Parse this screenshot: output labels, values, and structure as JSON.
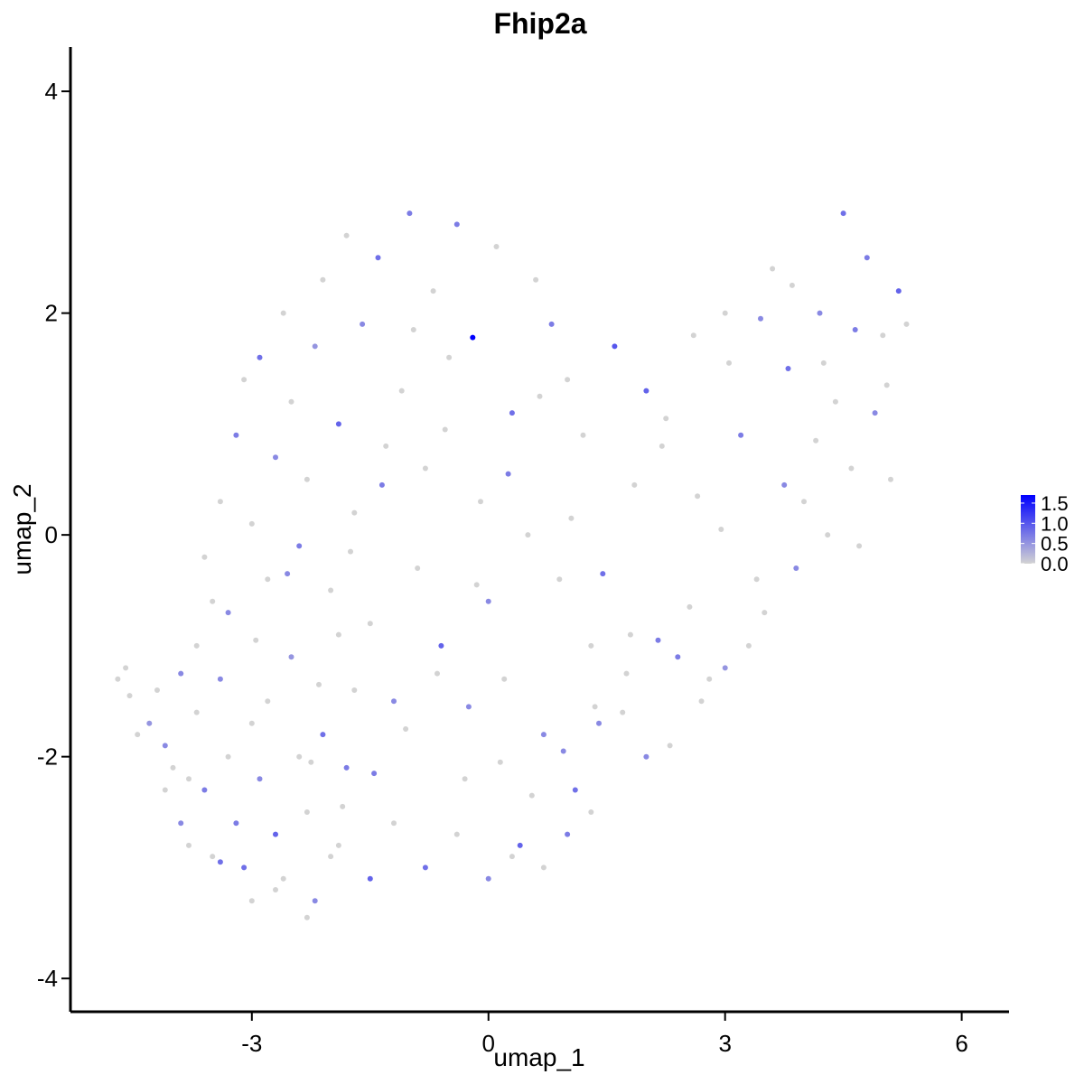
{
  "chart_data": {
    "type": "scatter",
    "title": "Fhip2a",
    "xlabel": "umap_1",
    "ylabel": "umap_2",
    "xlim": [
      -5.3,
      6.6
    ],
    "ylim": [
      -4.3,
      4.4
    ],
    "x_ticks": [
      -3,
      0,
      3,
      6
    ],
    "y_ticks": [
      -4,
      -2,
      0,
      2,
      4
    ],
    "x_tick_labels": [
      "-3",
      "0",
      "3",
      "6"
    ],
    "y_tick_labels": [
      "-4",
      "-2",
      "0",
      "2",
      "4"
    ],
    "grid": false,
    "legend": {
      "placement": "right",
      "type": "continuous",
      "min": 0.0,
      "max": 1.7,
      "ticks": [
        0.0,
        0.5,
        1.0,
        1.5
      ],
      "tick_labels": [
        "0.0",
        "0.5",
        "1.0",
        "1.5"
      ],
      "color_low": "#d3d3d3",
      "color_high": "#0000ff"
    },
    "point_colors": {
      "low": "#d3d3d3",
      "high": "#0000ff"
    },
    "points": [
      [
        -4.7,
        -1.3,
        0
      ],
      [
        -4.6,
        -1.2,
        0
      ],
      [
        -4.55,
        -1.45,
        0
      ],
      [
        -4.45,
        -1.8,
        0
      ],
      [
        -4.2,
        -1.4,
        0
      ],
      [
        -4.1,
        -1.9,
        0.6
      ],
      [
        -4.0,
        -2.1,
        0
      ],
      [
        -3.9,
        -2.6,
        0.6
      ],
      [
        -3.8,
        -2.2,
        0
      ],
      [
        -3.7,
        -1.6,
        0
      ],
      [
        -3.6,
        -2.3,
        0.7
      ],
      [
        -3.5,
        -2.9,
        0
      ],
      [
        -3.4,
        -1.3,
        0.6
      ],
      [
        -3.3,
        -2.0,
        0
      ],
      [
        -3.2,
        -2.6,
        0.7
      ],
      [
        -3.1,
        -3.0,
        0.8
      ],
      [
        -3.0,
        -1.7,
        0
      ],
      [
        -2.9,
        -2.2,
        0.6
      ],
      [
        -2.8,
        -1.5,
        0
      ],
      [
        -2.7,
        -2.7,
        0.9
      ],
      [
        -2.6,
        -3.1,
        0
      ],
      [
        -2.5,
        -1.1,
        0.5
      ],
      [
        -2.4,
        -2.0,
        0
      ],
      [
        -2.3,
        -2.5,
        0
      ],
      [
        -2.2,
        -3.3,
        0.6
      ],
      [
        -2.1,
        -1.8,
        0.8
      ],
      [
        -2.0,
        -2.9,
        0
      ],
      [
        -1.9,
        -0.9,
        0
      ],
      [
        -1.8,
        -2.1,
        0.7
      ],
      [
        -1.7,
        -1.4,
        0
      ],
      [
        -3.6,
        -0.2,
        0
      ],
      [
        -3.4,
        0.3,
        0
      ],
      [
        -3.3,
        -0.7,
        0.6
      ],
      [
        -3.2,
        0.9,
        0.7
      ],
      [
        -3.1,
        1.4,
        0
      ],
      [
        -3.0,
        0.1,
        0
      ],
      [
        -2.9,
        1.6,
        0.8
      ],
      [
        -2.8,
        -0.4,
        0
      ],
      [
        -2.7,
        0.7,
        0.6
      ],
      [
        -2.6,
        2.0,
        0
      ],
      [
        -2.5,
        1.2,
        0
      ],
      [
        -2.4,
        -0.1,
        0.7
      ],
      [
        -2.3,
        0.5,
        0
      ],
      [
        -2.2,
        1.7,
        0.5
      ],
      [
        -2.1,
        2.3,
        0
      ],
      [
        -2.0,
        -0.5,
        0
      ],
      [
        -1.9,
        1.0,
        0.9
      ],
      [
        -1.8,
        2.7,
        0
      ],
      [
        -1.7,
        0.2,
        0
      ],
      [
        -1.6,
        1.9,
        0.6
      ],
      [
        -1.5,
        -0.8,
        0
      ],
      [
        -1.4,
        2.5,
        0.8
      ],
      [
        -1.3,
        0.8,
        0
      ],
      [
        -1.2,
        -1.5,
        0.6
      ],
      [
        -1.1,
        1.3,
        0
      ],
      [
        -1.0,
        2.9,
        0.7
      ],
      [
        -0.9,
        -0.3,
        0
      ],
      [
        -0.8,
        0.6,
        0
      ],
      [
        -0.7,
        2.2,
        0
      ],
      [
        -0.6,
        -1.0,
        0.9
      ],
      [
        -0.5,
        1.6,
        0
      ],
      [
        -0.4,
        2.8,
        0.7
      ],
      [
        -0.3,
        -2.2,
        0
      ],
      [
        -0.2,
        1.78,
        1.7
      ],
      [
        -0.1,
        0.3,
        0
      ],
      [
        0.0,
        -0.6,
        0.6
      ],
      [
        0.1,
        2.6,
        0
      ],
      [
        0.2,
        -1.3,
        0
      ],
      [
        0.3,
        1.1,
        0.8
      ],
      [
        0.4,
        -2.8,
        0.9
      ],
      [
        0.5,
        0.0,
        0
      ],
      [
        0.6,
        2.3,
        0
      ],
      [
        0.7,
        -1.8,
        0.6
      ],
      [
        0.8,
        1.9,
        0.7
      ],
      [
        0.9,
        -0.4,
        0
      ],
      [
        1.0,
        1.4,
        0
      ],
      [
        1.1,
        -2.3,
        0.8
      ],
      [
        1.2,
        0.9,
        0
      ],
      [
        1.3,
        -1.0,
        0
      ],
      [
        1.4,
        -1.7,
        0.6
      ],
      [
        1.6,
        1.7,
        1.0
      ],
      [
        1.8,
        -0.9,
        0
      ],
      [
        2.0,
        1.3,
        0.9
      ],
      [
        2.2,
        0.8,
        0
      ],
      [
        2.4,
        -1.1,
        0.7
      ],
      [
        2.6,
        1.8,
        0
      ],
      [
        2.8,
        -1.3,
        0
      ],
      [
        3.0,
        2.0,
        0
      ],
      [
        3.2,
        0.9,
        0.7
      ],
      [
        3.4,
        -0.4,
        0
      ],
      [
        3.6,
        2.4,
        0
      ],
      [
        3.8,
        1.5,
        0.8
      ],
      [
        4.0,
        0.3,
        0
      ],
      [
        4.2,
        2.0,
        0.6
      ],
      [
        4.4,
        1.2,
        0
      ],
      [
        4.5,
        2.9,
        0.8
      ],
      [
        4.6,
        0.6,
        0
      ],
      [
        4.8,
        2.5,
        0.7
      ],
      [
        5.0,
        1.8,
        0
      ],
      [
        5.2,
        2.2,
        0.9
      ],
      [
        5.3,
        1.9,
        0
      ],
      [
        5.1,
        0.5,
        0
      ],
      [
        4.9,
        1.1,
        0.6
      ],
      [
        4.7,
        -0.1,
        0
      ],
      [
        4.3,
        0.0,
        0
      ],
      [
        3.9,
        -0.3,
        0.6
      ],
      [
        3.5,
        -0.7,
        0
      ],
      [
        3.3,
        -1.0,
        0
      ],
      [
        3.0,
        -1.2,
        0.5
      ],
      [
        2.7,
        -1.5,
        0
      ],
      [
        2.3,
        -1.9,
        0
      ],
      [
        2.0,
        -2.0,
        0.6
      ],
      [
        1.7,
        -1.6,
        0
      ],
      [
        1.3,
        -2.5,
        0
      ],
      [
        1.0,
        -2.7,
        0.7
      ],
      [
        0.7,
        -3.0,
        0
      ],
      [
        0.3,
        -2.9,
        0
      ],
      [
        0.0,
        -3.1,
        0.6
      ],
      [
        -0.4,
        -2.7,
        0
      ],
      [
        -0.8,
        -3.0,
        0.8
      ],
      [
        -1.2,
        -2.6,
        0
      ],
      [
        -1.5,
        -3.1,
        0.9
      ],
      [
        -1.9,
        -2.8,
        0
      ],
      [
        -2.3,
        -3.45,
        0
      ],
      [
        -2.7,
        -3.2,
        0
      ],
      [
        -3.0,
        -3.3,
        0
      ],
      [
        -3.4,
        -2.95,
        0.8
      ],
      [
        -3.8,
        -2.8,
        0
      ],
      [
        -4.1,
        -2.3,
        0
      ],
      [
        -4.3,
        -1.7,
        0.5
      ],
      [
        -3.7,
        -1.0,
        0
      ],
      [
        -3.5,
        -0.6,
        0
      ],
      [
        -3.9,
        -1.25,
        0.6
      ],
      [
        -2.95,
        -0.95,
        0
      ],
      [
        -2.55,
        -0.35,
        0.6
      ],
      [
        -2.15,
        -1.35,
        0
      ],
      [
        -1.75,
        -0.15,
        0
      ],
      [
        -1.35,
        0.45,
        0.7
      ],
      [
        -0.95,
        1.85,
        0
      ],
      [
        -0.55,
        0.95,
        0
      ],
      [
        -0.15,
        -0.45,
        0
      ],
      [
        0.25,
        0.55,
        0.7
      ],
      [
        0.65,
        1.25,
        0
      ],
      [
        1.05,
        0.15,
        0
      ],
      [
        1.45,
        -0.35,
        0.8
      ],
      [
        1.85,
        0.45,
        0
      ],
      [
        2.25,
        1.05,
        0
      ],
      [
        2.65,
        0.35,
        0
      ],
      [
        3.05,
        1.55,
        0
      ],
      [
        3.45,
        1.95,
        0.6
      ],
      [
        3.85,
        2.25,
        0
      ],
      [
        4.25,
        1.55,
        0
      ],
      [
        4.65,
        1.85,
        0.7
      ],
      [
        5.05,
        1.35,
        0
      ],
      [
        4.15,
        0.85,
        0
      ],
      [
        3.75,
        0.45,
        0.6
      ],
      [
        2.95,
        0.05,
        0
      ],
      [
        2.55,
        -0.65,
        0
      ],
      [
        2.15,
        -0.95,
        0.7
      ],
      [
        1.75,
        -1.25,
        0
      ],
      [
        1.35,
        -1.55,
        0
      ],
      [
        0.95,
        -1.95,
        0.6
      ],
      [
        0.55,
        -2.35,
        0
      ],
      [
        0.15,
        -2.05,
        0
      ],
      [
        -0.25,
        -1.55,
        0.6
      ],
      [
        -0.65,
        -1.25,
        0
      ],
      [
        -1.05,
        -1.75,
        0
      ],
      [
        -1.45,
        -2.15,
        0.7
      ],
      [
        -1.85,
        -2.45,
        0
      ],
      [
        -2.25,
        -2.05,
        0
      ]
    ]
  }
}
